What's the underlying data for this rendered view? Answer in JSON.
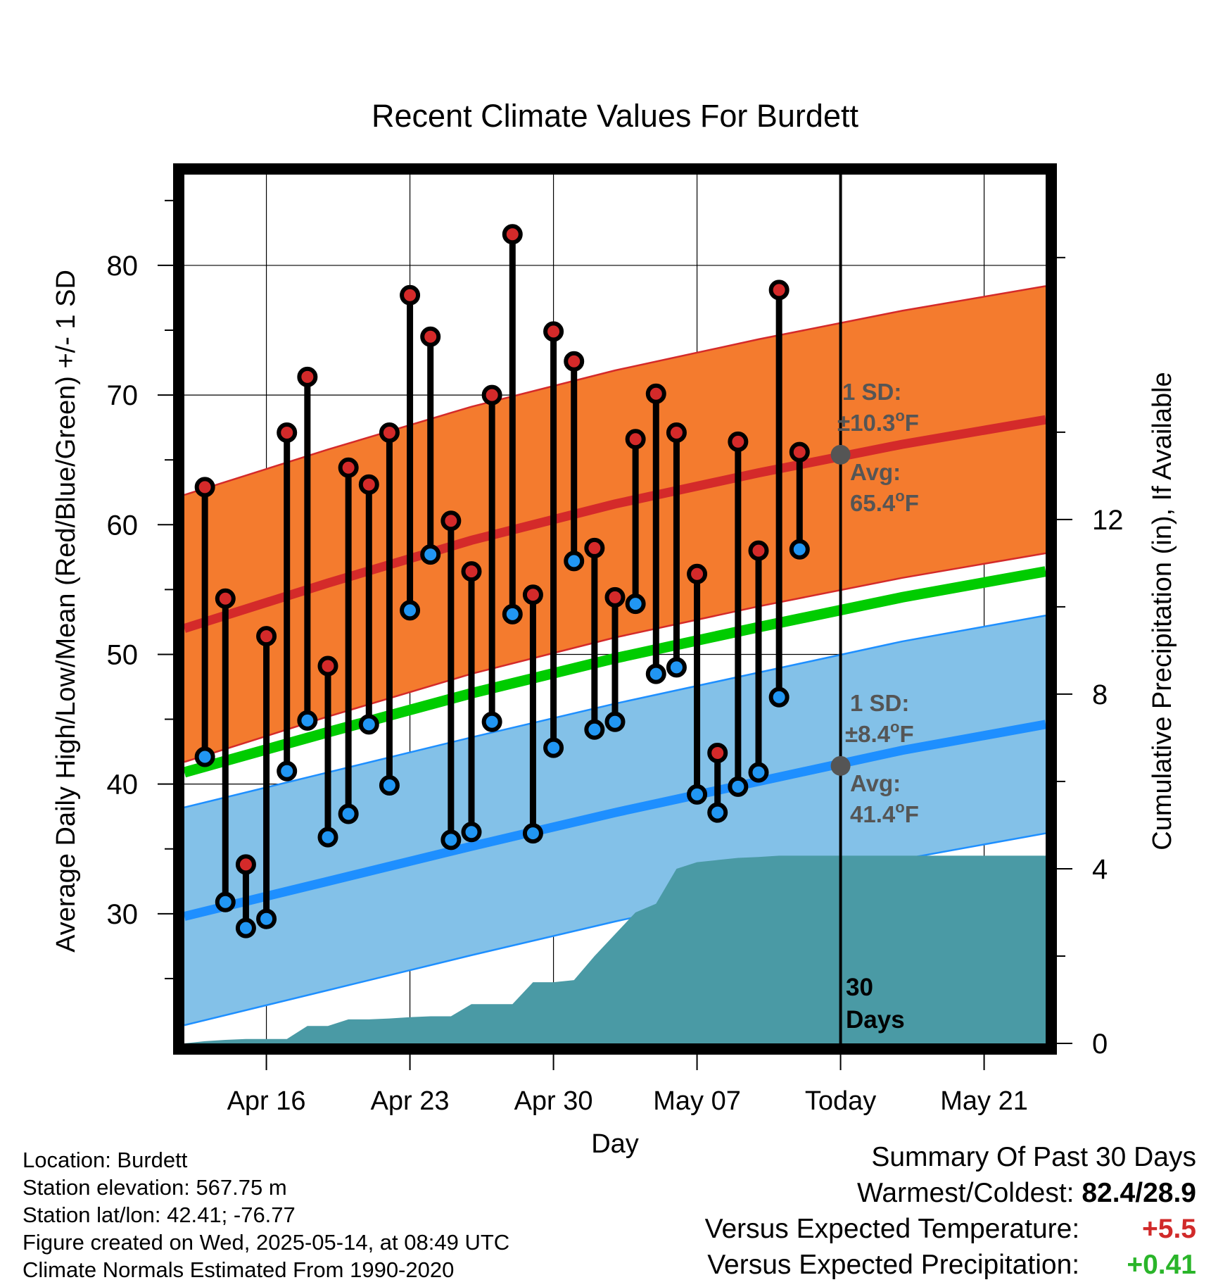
{
  "chart_data": {
    "type": "line",
    "title": "Recent Climate Values For Burdett",
    "xlabel": "Day",
    "ylabel": "Average Daily High/Low/Mean (Red/Blue/Green) +/- 1 SD",
    "y2label": "Cumulative Precipitation (in), If Available",
    "x_range": [
      "2025-04-12",
      "2025-05-24"
    ],
    "ylim": [
      20,
      87
    ],
    "y2lim": [
      0,
      19.9
    ],
    "x_ticks": [
      {
        "date": "2025-04-16",
        "label": "Apr 16"
      },
      {
        "date": "2025-04-23",
        "label": "Apr 23"
      },
      {
        "date": "2025-04-30",
        "label": "Apr 30"
      },
      {
        "date": "2025-05-07",
        "label": "May 07"
      },
      {
        "date": "2025-05-14",
        "label": "Today"
      },
      {
        "date": "2025-05-21",
        "label": "May 21"
      }
    ],
    "y_ticks": [
      30,
      40,
      50,
      60,
      70,
      80
    ],
    "y2_ticks": [
      0,
      4,
      8,
      12
    ],
    "grid": true,
    "today": "2025-05-14",
    "today_label": "30 Days",
    "normals": {
      "dates": [
        "2025-04-12",
        "2025-04-19",
        "2025-04-26",
        "2025-05-03",
        "2025-05-10",
        "2025-05-17",
        "2025-05-24"
      ],
      "high_mean": [
        52.0,
        55.5,
        58.8,
        61.6,
        64.0,
        66.2,
        68.1
      ],
      "high_sd": 10.3,
      "low_mean": [
        29.8,
        32.5,
        35.2,
        37.8,
        40.2,
        42.6,
        44.6
      ],
      "low_sd": 8.4,
      "mean": [
        40.9,
        44.0,
        47.0,
        49.7,
        52.1,
        54.4,
        56.4
      ]
    },
    "daily": {
      "start": "2025-04-13",
      "high": [
        62.9,
        54.3,
        33.8,
        51.4,
        67.1,
        71.4,
        49.1,
        64.4,
        63.1,
        67.1,
        77.7,
        74.5,
        60.3,
        56.4,
        70.0,
        82.4,
        54.6,
        74.9,
        72.6,
        58.2,
        54.4,
        66.6,
        70.1,
        67.1,
        56.2,
        42.4,
        66.4,
        58.0,
        78.1,
        65.6
      ],
      "low": [
        42.1,
        30.9,
        28.9,
        29.6,
        41.0,
        44.9,
        35.9,
        37.7,
        44.6,
        39.9,
        53.4,
        57.7,
        35.7,
        36.3,
        44.8,
        53.1,
        36.2,
        42.8,
        57.2,
        44.2,
        44.8,
        53.9,
        48.5,
        49.0,
        39.2,
        37.8,
        39.8,
        40.9,
        46.7,
        58.1
      ]
    },
    "precip": {
      "days": [
        0,
        1,
        2,
        3,
        4,
        5,
        6,
        7,
        8,
        9,
        10,
        11,
        12,
        13,
        14,
        15,
        16,
        17,
        18,
        19,
        20,
        21,
        22,
        23,
        24,
        25,
        26,
        27,
        28,
        29,
        30,
        31,
        32,
        33,
        34,
        35,
        36,
        37,
        38,
        39,
        40
      ],
      "cumulative": [
        0,
        0.05,
        0.08,
        0.1,
        0.1,
        0.1,
        0.4,
        0.4,
        0.55,
        0.55,
        0.57,
        0.6,
        0.62,
        0.62,
        0.9,
        0.9,
        0.9,
        1.4,
        1.4,
        1.45,
        2.0,
        2.5,
        3.0,
        3.2,
        4.0,
        4.15,
        4.2,
        4.25,
        4.27,
        4.3,
        4.3,
        4.3,
        4.3,
        4.3,
        4.3,
        4.3,
        4.3,
        4.3,
        4.3,
        4.3,
        4.3
      ]
    },
    "annotations": {
      "high_sd_label": "1 SD:",
      "high_sd_value": "±10.3°F",
      "high_avg_label": "Avg:",
      "high_avg_value": "65.4°F",
      "high_avg": 65.4,
      "low_sd_label": "1 SD:",
      "low_sd_value": "±8.4°F",
      "low_avg_label": "Avg:",
      "low_avg_value": "41.4°F",
      "low_avg": 41.4
    },
    "colors": {
      "high_band": "#f47b2e",
      "high_line": "#d42a2a",
      "low_band": "#83c1e8",
      "low_line": "#1e8fff",
      "mean_line": "#00cc00",
      "precip": "#4a9aa5",
      "high_dot": "#d42a2a",
      "low_dot": "#2196f3",
      "annotation": "#555555"
    }
  },
  "footer": {
    "location": "Location: Burdett",
    "elevation": "Station elevation: 567.75 m",
    "latlon": "Station lat/lon: 42.41; -76.77",
    "created": "Figure created on Wed, 2025-05-14, at 08:49 UTC",
    "normals": "Climate Normals Estimated From 1990-2020"
  },
  "summary": {
    "title": "Summary Of Past 30 Days",
    "warmest_label": "Warmest/Coldest:",
    "warmest_value": "82.4/28.9",
    "temp_label": "Versus Expected Temperature:",
    "temp_value": "+5.5",
    "precip_label": "Versus Expected Precipitation:",
    "precip_value": "+0.41"
  }
}
